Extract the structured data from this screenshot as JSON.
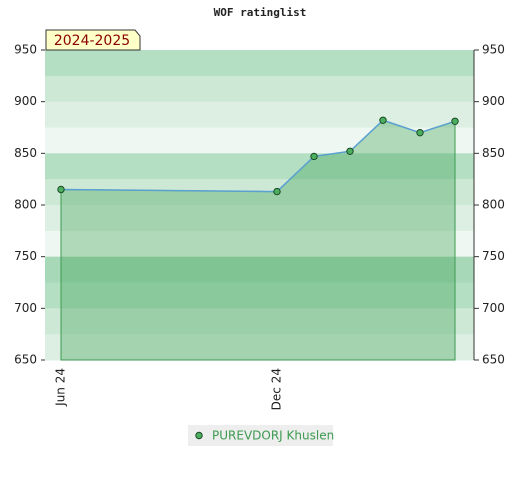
{
  "chart_data": {
    "type": "line",
    "title": "WOF ratinglist",
    "badge": "2024-2025",
    "categories": [
      "Jun 24",
      "Dec 24",
      null,
      null,
      null,
      null,
      null
    ],
    "series": [
      {
        "name": "PUREVDORJ Khuslen",
        "color": "#3c9a50",
        "values": [
          815,
          813,
          847,
          852,
          882,
          870,
          881
        ]
      }
    ],
    "ylim": [
      650,
      950
    ],
    "yticks": [
      650,
      700,
      750,
      800,
      850,
      900,
      950
    ],
    "y2lim": [
      650,
      950
    ],
    "y2ticks": [
      650,
      700,
      750,
      800,
      850,
      900,
      950
    ]
  }
}
